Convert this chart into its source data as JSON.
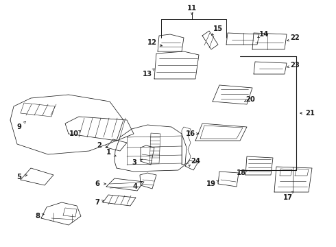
{
  "bg_color": "#ffffff",
  "line_color": "#1a1a1a",
  "lw": 0.55,
  "label_fontsize": 7.2,
  "fig_width": 4.9,
  "fig_height": 3.6,
  "dpi": 100
}
